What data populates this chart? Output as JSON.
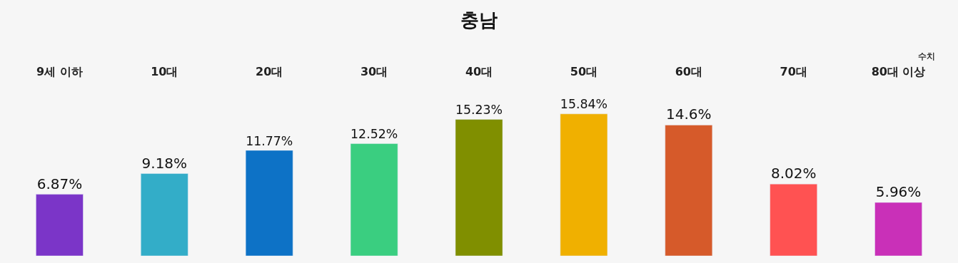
{
  "chart_data": {
    "type": "bar",
    "title": "충남",
    "annotations": [
      "수치"
    ],
    "categories": [
      "9세 이하",
      "10대",
      "20대",
      "30대",
      "40대",
      "50대",
      "60대",
      "70대",
      "80대 이상"
    ],
    "values": [
      6.87,
      9.18,
      11.77,
      12.52,
      15.23,
      15.84,
      14.6,
      8.02,
      5.96
    ],
    "value_labels": [
      "6.87%",
      "9.18%",
      "11.77%",
      "12.52%",
      "15.23%",
      "15.84%",
      "14.6%",
      "8.02%",
      "5.96%"
    ],
    "colors": [
      "#7b35c8",
      "#33adc8",
      "#0d72c6",
      "#3ace80",
      "#808f00",
      "#f0b000",
      "#d65a2a",
      "#ff5252",
      "#c930b8"
    ],
    "grid": false,
    "legend": false
  }
}
